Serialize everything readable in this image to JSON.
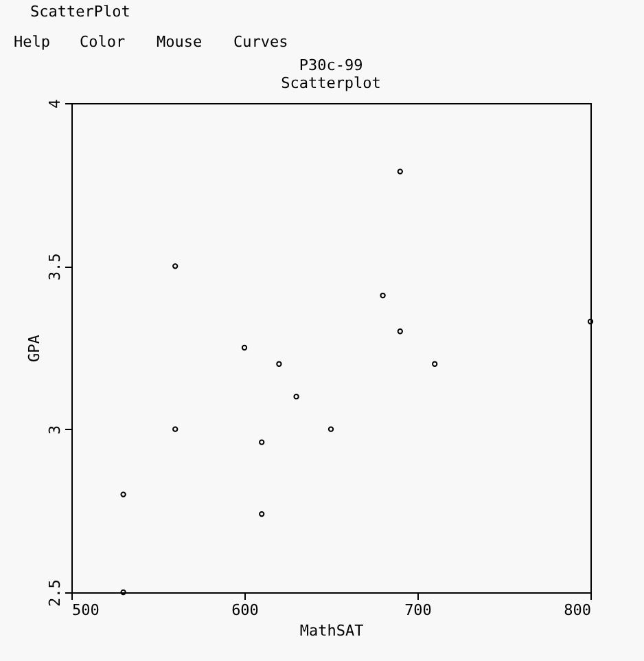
{
  "chart_data": {
    "type": "scatter",
    "title": "P30c-99",
    "subtitle": "Scatterplot",
    "xlabel": "MathSAT",
    "ylabel": "GPA",
    "annotations": [
      "ScatterPlot",
      "Help",
      "Color",
      "Mouse",
      "Curves"
    ],
    "x": [
      530,
      530,
      560,
      560,
      600,
      610,
      610,
      620,
      630,
      650,
      680,
      690,
      690,
      710,
      800
    ],
    "values": [
      2.5,
      2.8,
      3.5,
      3.0,
      3.25,
      2.96,
      2.74,
      3.2,
      3.1,
      3.0,
      3.41,
      3.79,
      3.3,
      3.2,
      3.33
    ],
    "color": "#000000",
    "marker": "circle",
    "grid": false,
    "xlim": [
      500,
      800
    ],
    "xticks": [
      500,
      600,
      700,
      800
    ],
    "ylim": [
      2.5,
      4
    ],
    "yticks": [
      2.5,
      3,
      3.5,
      4
    ]
  }
}
